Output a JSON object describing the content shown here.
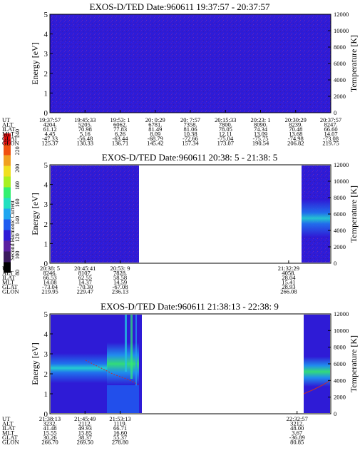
{
  "colors": {
    "background_band": "#2e1bd6",
    "white": "#ffffff"
  },
  "colorbar": {
    "label": "Second Harmonic Current",
    "ticks": [
      "80",
      "100",
      "120",
      "140",
      "160",
      "180",
      "200",
      "220",
      "240"
    ],
    "colors": [
      "#000000",
      "#3a1a5e",
      "#5a1fa0",
      "#2e1bd6",
      "#1f5cf0",
      "#1fa6f0",
      "#22e0c0",
      "#33f070",
      "#a8f020",
      "#f0e020",
      "#f0a020",
      "#f05010",
      "#e01010"
    ]
  },
  "chart_data": [
    {
      "type": "heatmap",
      "title": "EXOS-D/TED   Date:960611  19:37:57 - 20:37:57",
      "ylabel": "Energy [eV]",
      "ylabel_right": "Temperature [K]",
      "ylim": [
        0,
        5
      ],
      "ylim_right": [
        0,
        12000
      ],
      "yticks": [
        "0",
        "1",
        "2",
        "3",
        "4",
        "5"
      ],
      "yticks_right": [
        "0",
        "2000",
        "4000",
        "6000",
        "8000",
        "10000",
        "12000"
      ],
      "data_coverage": [
        [
          0,
          1
        ]
      ],
      "table": {
        "row_labels": [
          "UT",
          "ALT",
          "ILAT",
          "MLT",
          "GLAT",
          "GLON"
        ],
        "columns": [
          [
            "19:37:57",
            "4204.",
            "61.12",
            "4.45",
            "-47.33",
            "125.37"
          ],
          [
            "19:45:33",
            "5205.",
            "70.98",
            "5.16",
            "-56.48",
            "130.33"
          ],
          [
            "19:53: 1",
            "6062.",
            "77.83",
            "6.26",
            "-63.44",
            "136.71"
          ],
          [
            "20: 0:29",
            "6781.",
            "81.49",
            "8.09",
            "-68.79",
            "145.42"
          ],
          [
            "20: 7:57",
            "7358.",
            "81.06",
            "10.38",
            "-72.66",
            "157.34"
          ],
          [
            "20:15:33",
            "7800.",
            "78.05",
            "12.11",
            "-75.04",
            "173.07"
          ],
          [
            "20:23: 1",
            "8090.",
            "74.34",
            "13.09",
            "-75.75",
            "190.54"
          ],
          [
            "20:30:29",
            "8239.",
            "70.48",
            "13.68",
            "-74.98",
            "206.82"
          ],
          [
            "20:37:57",
            "8247.",
            "66.60",
            "14.07",
            "-73.08",
            "219.75"
          ]
        ]
      }
    },
    {
      "type": "heatmap",
      "title": "EXOS-D/TED   Date:960611  20:38: 5 - 21:38: 5",
      "ylabel": "Energy [eV]",
      "ylabel_right": "Temperature [K]",
      "ylim": [
        0,
        5
      ],
      "ylim_right": [
        0,
        12000
      ],
      "yticks": [
        "0",
        "1",
        "2",
        "3",
        "4",
        "5"
      ],
      "yticks_right": [
        "0",
        "2000",
        "4000",
        "6000",
        "8000",
        "10000",
        "12000"
      ],
      "data_coverage": [
        [
          0,
          0.25
        ],
        [
          0.85,
          1
        ]
      ],
      "table": {
        "row_labels": [
          "UT",
          "ALT",
          "ILAT",
          "MLT",
          "GLAT",
          "GLON"
        ],
        "columns": [
          [
            "20:38: 5",
            "8246.",
            "66.53",
            "14.08",
            "-73.04",
            "219.95"
          ],
          [
            "20:45:41",
            "8107.",
            "62.55",
            "14.37",
            "-70.30",
            "229.47"
          ],
          [
            "20:53: 9",
            "7828.",
            "58.58",
            "14.59",
            "-67.08",
            "236.13"
          ],
          [
            "21:32:29",
            "4058.",
            "28.04",
            "15.41",
            "28.93",
            "266.08"
          ]
        ],
        "column_positions": [
          0,
          0.125,
          0.25,
          0.85
        ]
      }
    },
    {
      "type": "heatmap",
      "title": "EXOS-D/TED   Date:960611  21:38:13 - 22:38: 9",
      "ylabel": "Energy [eV]",
      "ylabel_right": "Temperature [K]",
      "ylim": [
        0,
        5
      ],
      "ylim_right": [
        0,
        12000
      ],
      "yticks": [
        "0",
        "1",
        "2",
        "3",
        "4",
        "5"
      ],
      "yticks_right": [
        "0",
        "2000",
        "4000",
        "6000",
        "8000",
        "10000",
        "12000"
      ],
      "data_coverage": [
        [
          0,
          0.36
        ],
        [
          0.88,
          1
        ]
      ],
      "table": {
        "row_labels": [
          "UT",
          "ALT",
          "ILAT",
          "MLT",
          "GLAT",
          "GLON"
        ],
        "columns": [
          [
            "21:38:13",
            "3232.",
            "41.48",
            "15.55",
            "30.26",
            "266.70"
          ],
          [
            "21:45:49",
            "2112.",
            "49.93",
            "15.85",
            "38.37",
            "269.50"
          ],
          [
            "21:53:13",
            "1119.",
            "66.71",
            "16.60",
            "55.37",
            "278.80"
          ],
          [
            "22:32:57",
            "3212.",
            "48.00",
            "3.67",
            "-36.89",
            "80.85"
          ]
        ],
        "column_positions": [
          0,
          0.125,
          0.25,
          0.88
        ]
      }
    }
  ]
}
